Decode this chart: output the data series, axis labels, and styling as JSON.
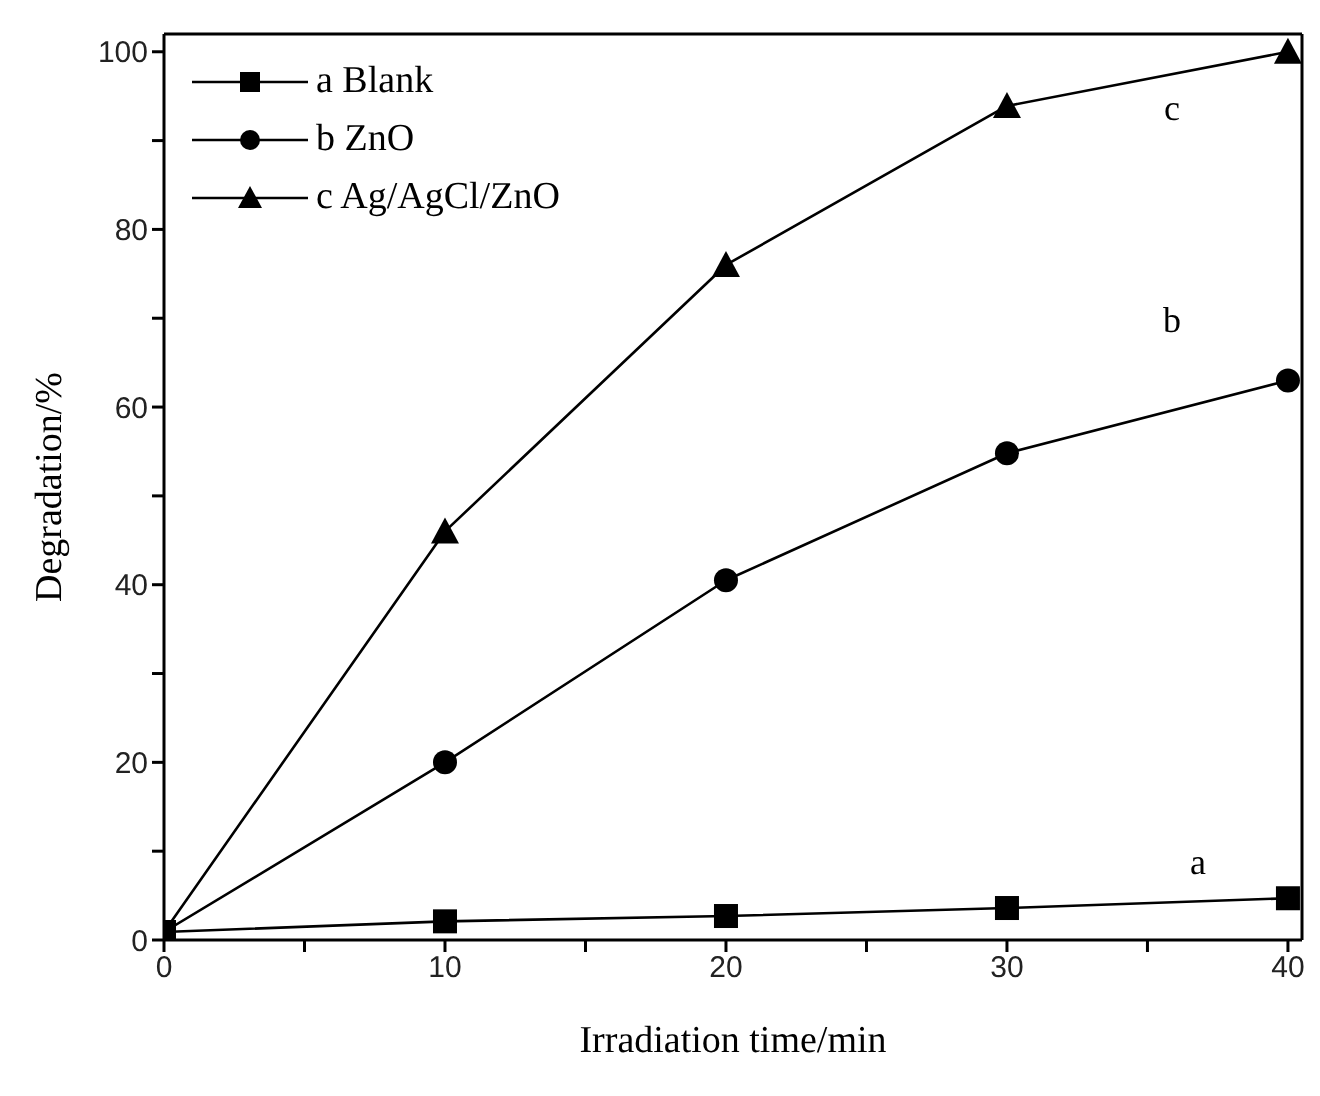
{
  "chart_data": {
    "type": "line",
    "xlabel": "Irradiation time/min",
    "ylabel": "Degradation/%",
    "x": [
      0,
      10,
      20,
      30,
      40
    ],
    "series": [
      {
        "name": "a Blank",
        "color": "#000000",
        "marker": "square",
        "values": [
          0.9,
          2.1,
          2.7,
          3.6,
          4.7
        ]
      },
      {
        "name": "b ZnO",
        "color": "#000000",
        "marker": "circle",
        "values": [
          0.9,
          20.0,
          40.5,
          54.8,
          63.0
        ]
      },
      {
        "name": "c Ag/AgCl/ZnO",
        "color": "#000000",
        "marker": "triangle",
        "values": [
          0.9,
          46.0,
          76.0,
          93.9,
          100.0
        ]
      }
    ],
    "xlim": [
      0,
      40.5
    ],
    "ylim": [
      0,
      102
    ],
    "xticks": [
      0,
      {
        "value": 5,
        "label": null
      },
      10,
      {
        "value": 15,
        "label": null
      },
      20,
      {
        "value": 25,
        "label": null
      },
      30,
      {
        "value": 35,
        "label": null
      },
      40
    ],
    "yticks": [
      0,
      {
        "value": 10,
        "label": null
      },
      20,
      {
        "value": 30,
        "label": null
      },
      40,
      {
        "value": 50,
        "label": null
      },
      60,
      {
        "value": 70,
        "label": null
      },
      80,
      {
        "value": 90,
        "label": null
      },
      100
    ],
    "annotations": [
      "a",
      "b",
      "c"
    ],
    "legend": "top left",
    "grid": false,
    "line_style": "solid"
  }
}
